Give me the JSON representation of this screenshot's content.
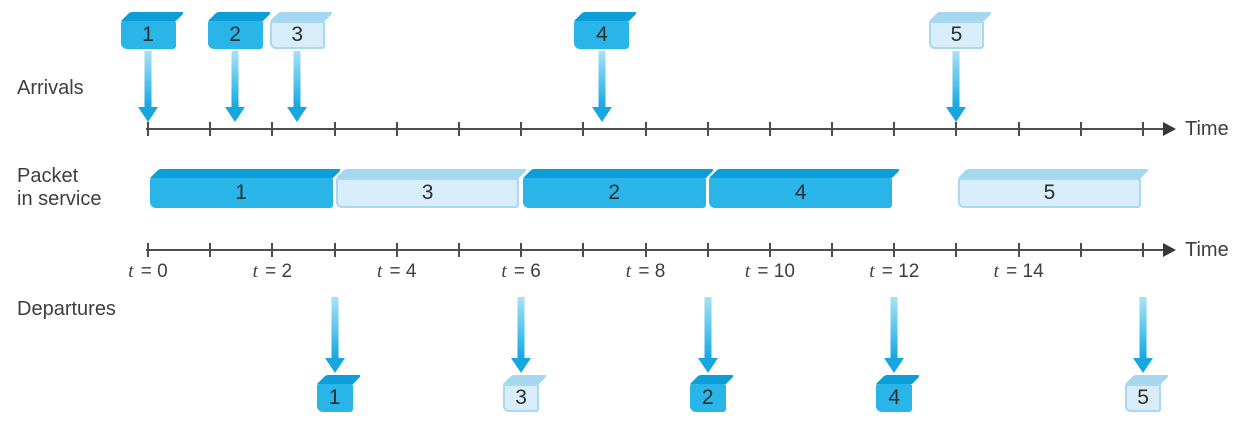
{
  "figure": {
    "row_labels": {
      "arrivals": "Arrivals",
      "service_line1": "Packet",
      "service_line2": "in service",
      "departures": "Departures"
    },
    "tick_label_variable": "t",
    "tick_label_values": [
      0,
      2,
      4,
      6,
      8,
      10,
      12,
      14
    ],
    "axis_label": "Time"
  },
  "colors": {
    "class1_face": "#29b5e8",
    "class1_bevel": "#0c9ed8",
    "class2_face": "#d7edf9",
    "class2_bevel": "#a5d7f0",
    "class2_border": "#a9d8f0",
    "arrow_gradient_top": "#a8e1f6",
    "arrow_gradient_bottom": "#16a7e1",
    "axis": "#4d4d4d",
    "text": "#3e3e3e"
  },
  "chart_data": {
    "type": "timeline",
    "description": "Two-class round-robin queue in operation: packet arrivals, packet in service, and departures over time",
    "class1_packets": [
      "1",
      "2",
      "4"
    ],
    "class2_packets": [
      "3",
      "5"
    ],
    "time_axis": {
      "min": 0,
      "max": 16,
      "tick_step": 1,
      "labeled_ticks": [
        0,
        2,
        4,
        6,
        8,
        10,
        12,
        14
      ],
      "axis_label": "Time"
    },
    "arrivals": [
      {
        "packet": "1",
        "class": 1,
        "t": 0
      },
      {
        "packet": "2",
        "class": 1,
        "t": 1.4
      },
      {
        "packet": "3",
        "class": 2,
        "t": 2.4
      },
      {
        "packet": "4",
        "class": 1,
        "t": 7.3
      },
      {
        "packet": "5",
        "class": 2,
        "t": 13
      }
    ],
    "service": [
      {
        "packet": "1",
        "class": 1,
        "start": 0,
        "end": 3
      },
      {
        "packet": "3",
        "class": 2,
        "start": 3,
        "end": 6
      },
      {
        "packet": "2",
        "class": 1,
        "start": 6,
        "end": 9
      },
      {
        "packet": "4",
        "class": 1,
        "start": 9,
        "end": 12
      },
      {
        "packet": "5",
        "class": 2,
        "start": 13,
        "end": 16
      }
    ],
    "departures": [
      {
        "packet": "1",
        "class": 1,
        "t": 3
      },
      {
        "packet": "3",
        "class": 2,
        "t": 6
      },
      {
        "packet": "2",
        "class": 1,
        "t": 9
      },
      {
        "packet": "4",
        "class": 1,
        "t": 12
      },
      {
        "packet": "5",
        "class": 2,
        "t": 16
      }
    ]
  }
}
